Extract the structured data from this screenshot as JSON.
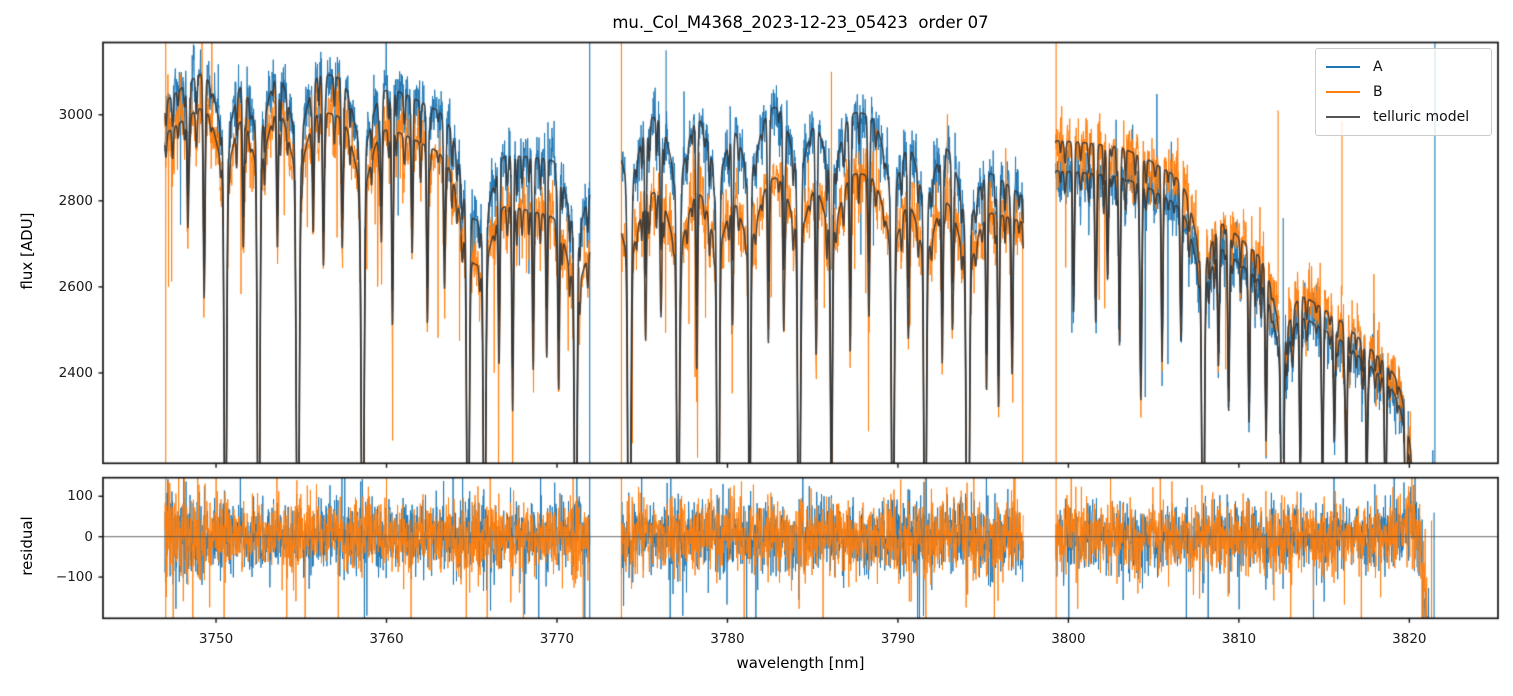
{
  "chart_data": {
    "type": "line",
    "title": "mu._Col_M4368_2023-12-23_05423  order 07",
    "xlabel": "wavelength [nm]",
    "xlim": [
      3743.37,
      3825.2
    ],
    "xticks": [
      3750,
      3760,
      3770,
      3780,
      3790,
      3800,
      3810,
      3820
    ],
    "panels": [
      {
        "id": "flux",
        "ylabel": "flux [ADU]",
        "ylim": [
          2190,
          3168
        ],
        "yticks": [
          3000,
          2800,
          2600,
          2400
        ],
        "zero_line": false
      },
      {
        "id": "residual",
        "ylabel": "residual",
        "ylim": [
          -202,
          146
        ],
        "yticks": [
          100,
          0,
          -100
        ],
        "zero_line": true
      }
    ],
    "legend": {
      "position": "upper right",
      "entries": [
        {
          "label": "A",
          "color": "#1f77b4"
        },
        {
          "label": "B",
          "color": "#ff7f0e"
        },
        {
          "label": "telluric model",
          "color": "#555555"
        }
      ]
    },
    "series_colors": {
      "A": "#1f77b4",
      "B": "#ff7f0e",
      "model": "#3c3c3c"
    },
    "segments": [
      {
        "xrange": [
          3747.0,
          3771.92
        ],
        "A_continuum": [
          [
            3747,
            3030
          ],
          [
            3749,
            3095
          ],
          [
            3752,
            3115
          ],
          [
            3755,
            3105
          ],
          [
            3757,
            3090
          ],
          [
            3759,
            3070
          ],
          [
            3761,
            3050
          ],
          [
            3763,
            3010
          ],
          [
            3765,
            2940
          ],
          [
            3767.5,
            2905
          ],
          [
            3770,
            2895
          ],
          [
            3771.92,
            2855
          ]
        ],
        "B_continuum": [
          [
            3747,
            2955
          ],
          [
            3749,
            3015
          ],
          [
            3752,
            3035
          ],
          [
            3755,
            3020
          ],
          [
            3757,
            3000
          ],
          [
            3759,
            2980
          ],
          [
            3761,
            2955
          ],
          [
            3763,
            2915
          ],
          [
            3765,
            2830
          ],
          [
            3767.5,
            2785
          ],
          [
            3770,
            2762
          ],
          [
            3771.92,
            2720
          ]
        ]
      },
      {
        "xrange": [
          3773.78,
          3797.35
        ],
        "A_continuum": [
          [
            3773.78,
            2990
          ],
          [
            3776,
            3000
          ],
          [
            3778,
            3005
          ],
          [
            3781,
            3015
          ],
          [
            3784,
            3025
          ],
          [
            3786,
            3020
          ],
          [
            3789,
            2995
          ],
          [
            3791,
            2965
          ],
          [
            3793,
            2930
          ],
          [
            3795,
            2880
          ],
          [
            3797.35,
            2810
          ]
        ],
        "B_continuum": [
          [
            3773.78,
            2815
          ],
          [
            3776,
            2825
          ],
          [
            3778,
            2832
          ],
          [
            3781,
            2845
          ],
          [
            3784,
            2865
          ],
          [
            3786,
            2875
          ],
          [
            3789,
            2855
          ],
          [
            3791,
            2830
          ],
          [
            3793,
            2805
          ],
          [
            3795,
            2780
          ],
          [
            3797.35,
            2750
          ]
        ]
      },
      {
        "xrange": [
          3799.25,
          3821.45
        ],
        "A_continuum": [
          [
            3799.25,
            2870
          ],
          [
            3801,
            2865
          ],
          [
            3803,
            2855
          ],
          [
            3804.5,
            2835
          ],
          [
            3806,
            2800
          ],
          [
            3808,
            2740
          ],
          [
            3810,
            2655
          ],
          [
            3812,
            2590
          ],
          [
            3814,
            2525
          ],
          [
            3816,
            2475
          ],
          [
            3818,
            2405
          ],
          [
            3819.8,
            2330
          ],
          [
            3820.6,
            2270
          ],
          [
            3821.45,
            2180
          ]
        ],
        "B_continuum": [
          [
            3799.25,
            2940
          ],
          [
            3801,
            2935
          ],
          [
            3803,
            2925
          ],
          [
            3804.5,
            2900
          ],
          [
            3806,
            2865
          ],
          [
            3808,
            2800
          ],
          [
            3810,
            2715
          ],
          [
            3812,
            2645
          ],
          [
            3814,
            2575
          ],
          [
            3816,
            2520
          ],
          [
            3818,
            2445
          ],
          [
            3819.8,
            2375
          ],
          [
            3820.6,
            2310
          ],
          [
            3821.45,
            2205
          ]
        ]
      }
    ],
    "telluric_lines": [
      [
        3748.35,
        260,
        0.05
      ],
      [
        3749.3,
        420,
        0.05
      ],
      [
        3750.55,
        1050,
        0.07
      ],
      [
        3751.6,
        300,
        0.05
      ],
      [
        3752.5,
        1080,
        0.07
      ],
      [
        3753.6,
        320,
        0.05
      ],
      [
        3754.8,
        1100,
        0.08
      ],
      [
        3755.7,
        260,
        0.05
      ],
      [
        3756.3,
        360,
        0.05
      ],
      [
        3757.4,
        300,
        0.05
      ],
      [
        3758.6,
        1050,
        0.08
      ],
      [
        3759.7,
        260,
        0.05
      ],
      [
        3760.35,
        470,
        0.05
      ],
      [
        3761.5,
        260,
        0.05
      ],
      [
        3762.4,
        430,
        0.05
      ],
      [
        3763.4,
        310,
        0.05
      ],
      [
        3764.78,
        980,
        0.07
      ],
      [
        3765.75,
        900,
        0.07
      ],
      [
        3766.6,
        360,
        0.05
      ],
      [
        3767.4,
        520,
        0.05
      ],
      [
        3768.6,
        360,
        0.05
      ],
      [
        3769.4,
        300,
        0.05
      ],
      [
        3770.1,
        420,
        0.05
      ],
      [
        3771.1,
        950,
        0.07
      ],
      [
        3774.25,
        1150,
        0.08
      ],
      [
        3775.2,
        350,
        0.05
      ],
      [
        3776.1,
        300,
        0.05
      ],
      [
        3777.1,
        1000,
        0.07
      ],
      [
        3778.2,
        350,
        0.05
      ],
      [
        3779.45,
        1050,
        0.07
      ],
      [
        3780.3,
        300,
        0.05
      ],
      [
        3781.3,
        850,
        0.06
      ],
      [
        3782.4,
        400,
        0.05
      ],
      [
        3783.3,
        350,
        0.05
      ],
      [
        3784.2,
        1100,
        0.07
      ],
      [
        3785.2,
        400,
        0.05
      ],
      [
        3786.1,
        700,
        0.06
      ],
      [
        3787.2,
        400,
        0.05
      ],
      [
        3788.3,
        350,
        0.05
      ],
      [
        3789.7,
        1000,
        0.07
      ],
      [
        3790.6,
        300,
        0.05
      ],
      [
        3791.6,
        950,
        0.07
      ],
      [
        3792.6,
        400,
        0.05
      ],
      [
        3793.2,
        300,
        0.05
      ],
      [
        3794.1,
        1150,
        0.08
      ],
      [
        3795.2,
        400,
        0.05
      ],
      [
        3795.9,
        500,
        0.05
      ],
      [
        3796.7,
        400,
        0.05
      ],
      [
        3800.3,
        300,
        0.05
      ],
      [
        3801.6,
        360,
        0.05
      ],
      [
        3802.3,
        260,
        0.05
      ],
      [
        3803.0,
        420,
        0.05
      ],
      [
        3804.25,
        520,
        0.06
      ],
      [
        3805.5,
        360,
        0.05
      ],
      [
        3806.6,
        310,
        0.05
      ],
      [
        3807.9,
        880,
        0.07
      ],
      [
        3808.8,
        300,
        0.05
      ],
      [
        3809.4,
        420,
        0.05
      ],
      [
        3810.6,
        360,
        0.05
      ],
      [
        3811.6,
        320,
        0.05
      ],
      [
        3812.55,
        820,
        0.07
      ],
      [
        3813.6,
        420,
        0.05
      ],
      [
        3814.9,
        360,
        0.05
      ],
      [
        3815.6,
        300,
        0.05
      ],
      [
        3816.3,
        420,
        0.05
      ],
      [
        3817.5,
        360,
        0.05
      ],
      [
        3818.6,
        470,
        0.05
      ],
      [
        3819.8,
        420,
        0.05
      ],
      [
        3820.3,
        750,
        0.07
      ],
      [
        3820.95,
        900,
        0.09
      ]
    ],
    "spikes_flux": [
      {
        "x": 3747.05,
        "series": "B",
        "y0": 2190,
        "y1": 3168
      },
      {
        "x": 3771.92,
        "series": "A",
        "y0": 2190,
        "y1": 3168
      },
      {
        "x": 3773.78,
        "series": "B",
        "y0": 2190,
        "y1": 3168
      },
      {
        "x": 3776.4,
        "series": "A",
        "y0": 2940,
        "y1": 3150
      },
      {
        "x": 3786.1,
        "series": "B",
        "y0": 2640,
        "y1": 3100
      },
      {
        "x": 3797.32,
        "series": "B",
        "y0": 2190,
        "y1": 2790
      },
      {
        "x": 3799.28,
        "series": "B",
        "y0": 2190,
        "y1": 3168
      },
      {
        "x": 3812.3,
        "series": "B",
        "y0": 2560,
        "y1": 3010
      },
      {
        "x": 3812.6,
        "series": "A",
        "y0": 2200,
        "y1": 2760
      },
      {
        "x": 3816.05,
        "series": "B",
        "y0": 2580,
        "y1": 2985
      },
      {
        "x": 3821.5,
        "series": "A",
        "y0": 2190,
        "y1": 3168
      }
    ],
    "spikes_residual": [
      {
        "x": 3747.05,
        "series": "B",
        "y0": -202,
        "y1": 146
      },
      {
        "x": 3771.92,
        "series": "A",
        "y0": -202,
        "y1": 146
      },
      {
        "x": 3773.78,
        "series": "B",
        "y0": -202,
        "y1": 146
      },
      {
        "x": 3799.28,
        "series": "B",
        "y0": -202,
        "y1": 146
      },
      {
        "x": 3821.3,
        "series": "B",
        "y0": -202,
        "y1": 40
      },
      {
        "x": 3821.45,
        "series": "A",
        "y0": -202,
        "y1": 60
      }
    ],
    "noise": {
      "flux_sigma_A": 34,
      "flux_sigma_B": 36,
      "residual_sigma": 42,
      "seed": 11
    }
  }
}
